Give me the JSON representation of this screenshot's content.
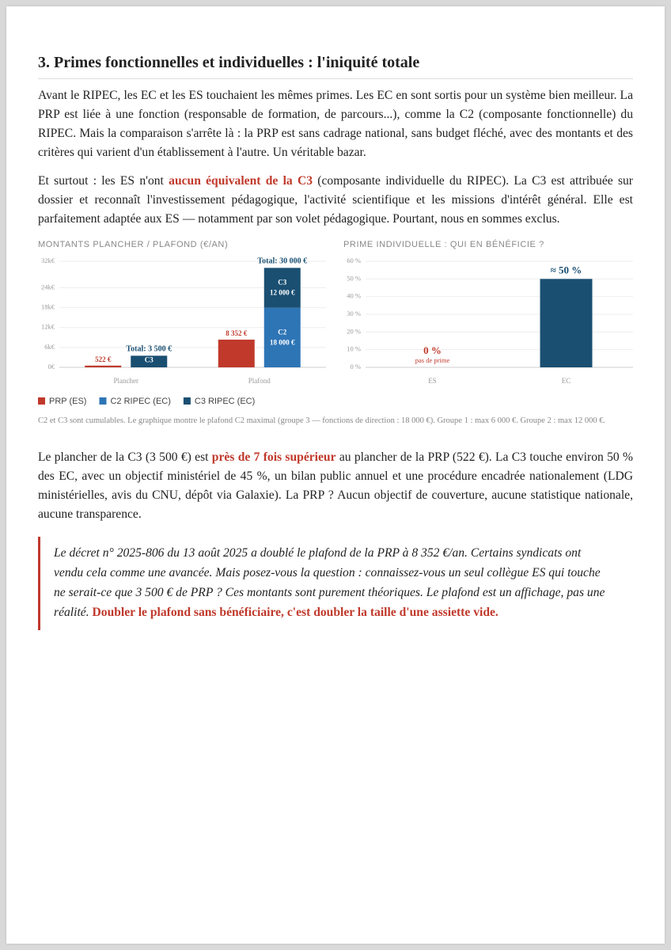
{
  "heading": "3. Primes fonctionnelles et individuelles : l'iniquité totale",
  "paragraphs": [
    [
      "Avant le RIPEC, les EC et les ES touchaient les mêmes primes. Les EC en sont sortis pour un système bien meilleur. La PRP est liée à une fonction (responsable de formation, de parcours...), comme la C2 (composante fonctionnelle) du RIPEC. Mais la comparaison s'arrête là : la PRP est sans cadrage national, sans budget fléché, avec des montants et des critères qui varient d'un établissement à l'autre. Un véritable bazar."
    ],
    [
      "Et surtout : les ES n'ont ",
      "aucun équivalent de la C3",
      " (composante individuelle du RIPEC). La C3 est attribuée sur dossier et reconnaît l'investissement pédagogique, l'activité scientifique et les missions d'intérêt général. Elle est parfaitement adaptée aux ES — notamment par son volet pédagogique. Pourtant, nous en sommes exclus."
    ]
  ],
  "chart_data": [
    {
      "type": "bar",
      "title": "MONTANTS PLANCHER / PLAFOND (€/AN)",
      "categories": [
        "Plancher",
        "Plafond"
      ],
      "series": [
        {
          "name": "PRP (ES)",
          "color": "#c0392b",
          "values": [
            522,
            8352
          ],
          "value_labels": [
            "522 €",
            "8 352 €"
          ]
        },
        {
          "name": "C2 RIPEC (EC)",
          "short_name": "C2",
          "color": "#2e75b6",
          "values": [
            null,
            18000
          ],
          "value_labels": [
            null,
            "18 000 €"
          ]
        },
        {
          "name": "C3 RIPEC (EC)",
          "short_name": "C3",
          "color": "#1a4f72",
          "values": [
            3500,
            12000
          ],
          "value_labels": [
            null,
            "12 000 €"
          ]
        }
      ],
      "totals": [
        {
          "value": 3500,
          "label": "Total: 3 500 €"
        },
        {
          "value": 30000,
          "label": "Total: 30 000 €"
        }
      ],
      "ylim": [
        0,
        32000
      ],
      "yticks": [
        {
          "value": 0,
          "label": "0€"
        },
        {
          "value": 6000,
          "label": "6k€"
        },
        {
          "value": 12000,
          "label": "12k€"
        },
        {
          "value": 18000,
          "label": "18k€"
        },
        {
          "value": 24000,
          "label": "24k€"
        },
        {
          "value": 32000,
          "label": "32k€"
        }
      ],
      "grid": true
    },
    {
      "type": "bar",
      "title": "PRIME INDIVIDUELLE : QUI EN BÉNÉFICIE ?",
      "categories": [
        "ES",
        "EC"
      ],
      "values": [
        0,
        50
      ],
      "value_labels": [
        "0 %",
        "≈ 50 %"
      ],
      "label_colors": [
        "#c0392b",
        "#1a4f72"
      ],
      "notes": [
        "pas de prime",
        null
      ],
      "color": "#1a4f72",
      "ylim": [
        0,
        60
      ],
      "yticks": [
        {
          "value": 0,
          "label": "0 %"
        },
        {
          "value": 10,
          "label": "10 %"
        },
        {
          "value": 20,
          "label": "20 %"
        },
        {
          "value": 30,
          "label": "30 %"
        },
        {
          "value": 40,
          "label": "40 %"
        },
        {
          "value": 50,
          "label": "50 %"
        },
        {
          "value": 60,
          "label": "60 %"
        }
      ],
      "grid": true
    }
  ],
  "caption": "C2 et C3 sont cumulables. Le graphique montre le plafond C2 maximal (groupe 3 — fonctions de direction : 18 000 €). Groupe 1 : max 6 000 €. Groupe 2 : max 12 000 €.",
  "paragraph_after": [
    "Le plancher de la C3 (3 500 €) est ",
    "près de 7 fois supérieur",
    " au plancher de la PRP (522 €). La C3 touche environ 50 % des EC, avec un objectif ministériel de 45 %, un bilan public annuel et une procédure encadrée nationalement (LDG ministérielles, avis du CNU, dépôt via Galaxie). La PRP ? Aucun objectif de couverture, aucune statistique nationale, aucune transparence."
  ],
  "quote": [
    "Le décret n° 2025-806 du 13 août 2025 a doublé le plafond de la PRP à 8 352 €/an. Certains syndicats ont vendu cela comme une avancée. Mais posez-vous la question : connaissez-vous un seul collègue ES qui touche ne serait-ce que 3 500 € de PRP ? Ces montants sont purement théoriques. Le plafond est un affichage, pas une réalité. ",
    "Doubler le plafond sans bénéficiaire, c'est doubler la taille d'une assiette vide."
  ]
}
